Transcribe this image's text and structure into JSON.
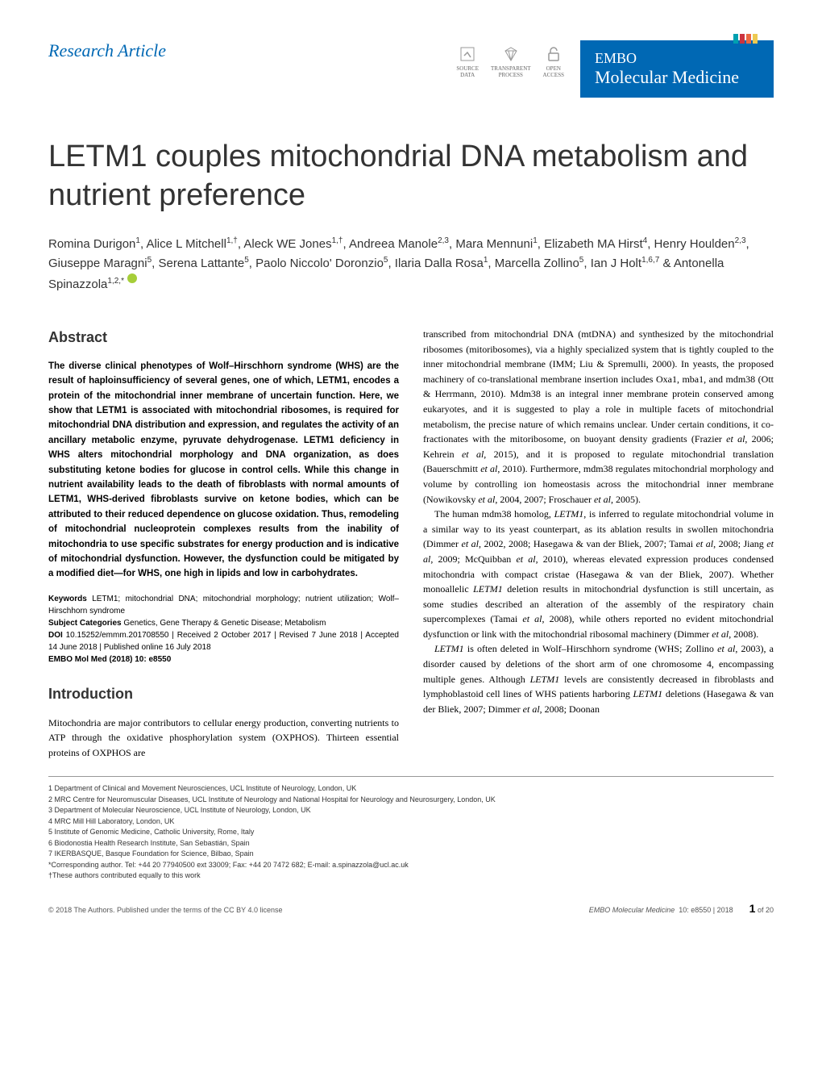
{
  "header": {
    "article_type": "Research Article",
    "badges": [
      {
        "label": "SOURCE\nDATA"
      },
      {
        "label": "TRANSPARENT\nPROCESS"
      },
      {
        "label": "OPEN\nACCESS"
      }
    ],
    "journal_line1": "EMBO",
    "journal_line2": "Molecular Medicine",
    "stripe_colors": [
      "#00a0b0",
      "#cc333f",
      "#eb6841",
      "#edc951"
    ],
    "journal_bg": "#0068b4"
  },
  "title": "LETM1 couples mitochondrial DNA metabolism and nutrient preference",
  "authors_html": "Romina Durigon<sup>1</sup>, Alice L Mitchell<sup>1,†</sup>, Aleck WE Jones<sup>1,†</sup>, Andreea Manole<sup>2,3</sup>, Mara Mennuni<sup>1</sup>, Elizabeth MA Hirst<sup>4</sup>, Henry Houlden<sup>2,3</sup>, Giuseppe Maragni<sup>5</sup>, Serena Lattante<sup>5</sup>, Paolo Niccolo' Doronzio<sup>5</sup>, Ilaria Dalla Rosa<sup>1</sup>, Marcella Zollino<sup>5</sup>, Ian J Holt<sup>1,6,7</sup> & Antonella Spinazzola<sup>1,2,*</sup>",
  "abstract": {
    "heading": "Abstract",
    "text": "The diverse clinical phenotypes of Wolf–Hirschhorn syndrome (WHS) are the result of haploinsufficiency of several genes, one of which, LETM1, encodes a protein of the mitochondrial inner membrane of uncertain function. Here, we show that LETM1 is associated with mitochondrial ribosomes, is required for mitochondrial DNA distribution and expression, and regulates the activity of an ancillary metabolic enzyme, pyruvate dehydrogenase. LETM1 deficiency in WHS alters mitochondrial morphology and DNA organization, as does substituting ketone bodies for glucose in control cells. While this change in nutrient availability leads to the death of fibroblasts with normal amounts of LETM1, WHS-derived fibroblasts survive on ketone bodies, which can be attributed to their reduced dependence on glucose oxidation. Thus, remodeling of mitochondrial nucleoprotein complexes results from the inability of mitochondria to use specific substrates for energy production and is indicative of mitochondrial dysfunction. However, the dysfunction could be mitigated by a modified diet—for WHS, one high in lipids and low in carbohydrates."
  },
  "meta": {
    "keywords_label": "Keywords",
    "keywords": "LETM1; mitochondrial DNA; mitochondrial morphology; nutrient utilization; Wolf–Hirschhorn syndrome",
    "categories_label": "Subject Categories",
    "categories": "Genetics, Gene Therapy & Genetic Disease; Metabolism",
    "doi_label": "DOI",
    "doi": "10.15252/emmm.201708550 | Received 2 October 2017 | Revised 7 June 2018 | Accepted 14 June 2018 | Published online 16 July 2018",
    "citation": "EMBO Mol Med (2018) 10: e8550"
  },
  "intro": {
    "heading": "Introduction",
    "p1": "Mitochondria are major contributors to cellular energy production, converting nutrients to ATP through the oxidative phosphorylation system (OXPHOS). Thirteen essential proteins of OXPHOS are"
  },
  "right_col": {
    "p1": "transcribed from mitochondrial DNA (mtDNA) and synthesized by the mitochondrial ribosomes (mitoribosomes), via a highly specialized system that is tightly coupled to the inner mitochondrial membrane (IMM; Liu & Spremulli, 2000). In yeasts, the proposed machinery of co-translational membrane insertion includes Oxa1, mba1, and mdm38 (Ott & Herrmann, 2010). Mdm38 is an integral inner membrane protein conserved among eukaryotes, and it is suggested to play a role in multiple facets of mitochondrial metabolism, the precise nature of which remains unclear. Under certain conditions, it co-fractionates with the mitoribosome, on buoyant density gradients (Frazier et al, 2006; Kehrein et al, 2015), and it is proposed to regulate mitochondrial translation (Bauerschmitt et al, 2010). Furthermore, mdm38 regulates mitochondrial morphology and volume by controlling ion homeostasis across the mitochondrial inner membrane (Nowikovsky et al, 2004, 2007; Froschauer et al, 2005).",
    "p2": "The human mdm38 homolog, LETM1, is inferred to regulate mitochondrial volume in a similar way to its yeast counterpart, as its ablation results in swollen mitochondria (Dimmer et al, 2002, 2008; Hasegawa & van der Bliek, 2007; Tamai et al, 2008; Jiang et al, 2009; McQuibban et al, 2010), whereas elevated expression produces condensed mitochondria with compact cristae (Hasegawa & van der Bliek, 2007). Whether monoallelic LETM1 deletion results in mitochondrial dysfunction is still uncertain, as some studies described an alteration of the assembly of the respiratory chain supercomplexes (Tamai et al, 2008), while others reported no evident mitochondrial dysfunction or link with the mitochondrial ribosomal machinery (Dimmer et al, 2008).",
    "p3": "LETM1 is often deleted in Wolf–Hirschhorn syndrome (WHS; Zollino et al, 2003), a disorder caused by deletions of the short arm of one chromosome 4, encompassing multiple genes. Although LETM1 levels are consistently decreased in fibroblasts and lymphoblastoid cell lines of WHS patients harboring LETM1 deletions (Hasegawa & van der Bliek, 2007; Dimmer et al, 2008; Doonan"
  },
  "affiliations": [
    "1   Department of Clinical and Movement Neurosciences, UCL Institute of Neurology, London, UK",
    "2   MRC Centre for Neuromuscular Diseases, UCL Institute of Neurology and National Hospital for Neurology and Neurosurgery, London, UK",
    "3   Department of Molecular Neuroscience, UCL Institute of Neurology, London, UK",
    "4   MRC Mill Hill Laboratory, London, UK",
    "5   Institute of Genomic Medicine, Catholic University, Rome, Italy",
    "6   Biodonostia Health Research Institute, San Sebastián, Spain",
    "7   IKERBASQUE, Basque Foundation for Science, Bilbao, Spain",
    "    *Corresponding author. Tel: +44 20 77940500 ext 33009; Fax: +44 20 7472 682; E-mail: a.spinazzola@ucl.ac.uk",
    "    †These authors contributed equally to this work"
  ],
  "footer": {
    "left": "© 2018 The Authors. Published under the terms of the CC BY 4.0 license",
    "journal": "EMBO Molecular Medicine",
    "issue": "10: e8550 | 2018",
    "page": "1",
    "of": "of 20"
  }
}
